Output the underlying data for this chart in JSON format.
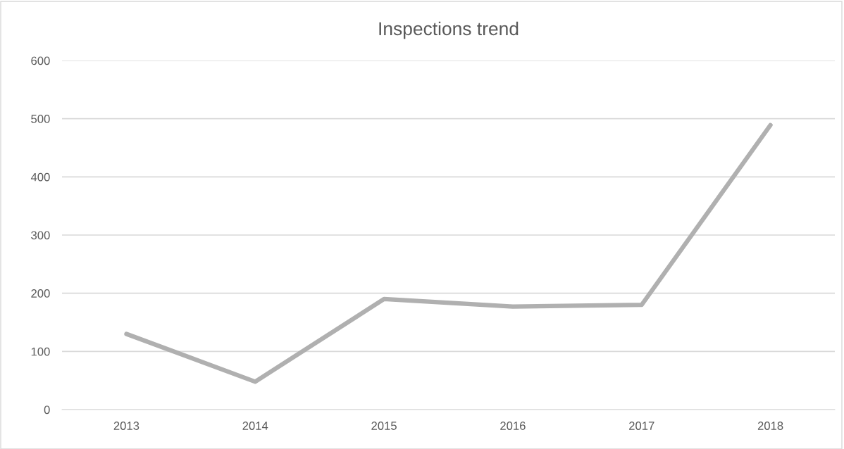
{
  "chart_data": {
    "type": "line",
    "title": "Inspections trend",
    "categories": [
      "2013",
      "2014",
      "2015",
      "2016",
      "2017",
      "2018"
    ],
    "series": [
      {
        "color": "#b0b0b0",
        "values": [
          130,
          48,
          190,
          177,
          180,
          489
        ]
      }
    ],
    "ylim": [
      0,
      600
    ],
    "yticks": [
      0,
      100,
      200,
      300,
      400,
      500,
      600
    ],
    "grid": "y",
    "legend": false,
    "marker": "none",
    "line_style": "solid"
  }
}
